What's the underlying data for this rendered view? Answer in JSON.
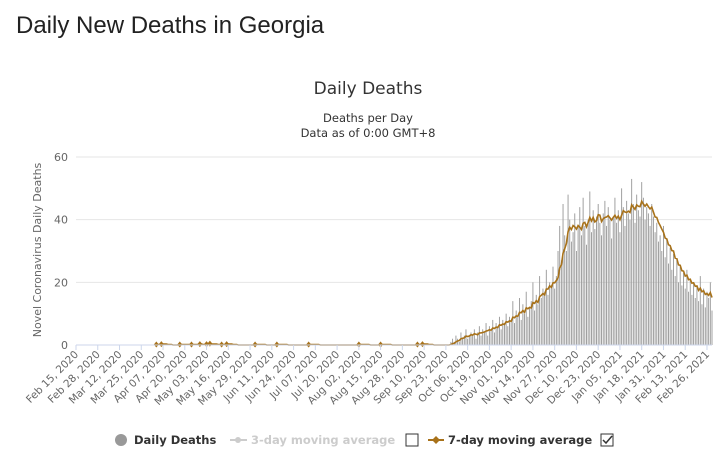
{
  "page": {
    "title": "Daily New Deaths in Georgia"
  },
  "chart_data": {
    "type": "bar",
    "title": "Daily Deaths",
    "subtitle_line1": "Deaths per Day",
    "subtitle_line2": "Data as of 0:00 GMT+8",
    "ylabel": "Novel Coronavirus Daily Deaths",
    "xlabel": "",
    "ylim": [
      0,
      60
    ],
    "y_ticks": [
      0,
      20,
      40,
      60
    ],
    "grid": true,
    "legend_position": "bottom",
    "x_start_date": "2020-02-15",
    "x_end_date": "2021-03-01",
    "x_tick_labels": [
      "Feb 15, 2020",
      "Feb 28, 2020",
      "Mar 12, 2020",
      "Mar 25, 2020",
      "Apr 07, 2020",
      "Apr 20, 2020",
      "May 03, 2020",
      "May 16, 2020",
      "May 29, 2020",
      "Jun 11, 2020",
      "Jun 24, 2020",
      "Jul 07, 2020",
      "Jul 20, 2020",
      "Aug 02, 2020",
      "Aug 15, 2020",
      "Aug 28, 2020",
      "Sep 10, 2020",
      "Sep 23, 2020",
      "Oct 06, 2020",
      "Oct 19, 2020",
      "Nov 01, 2020",
      "Nov 14, 2020",
      "Nov 27, 2020",
      "Dec 10, 2020",
      "Dec 23, 2020",
      "Jan 05, 2021",
      "Jan 18, 2021",
      "Jan 31, 2021",
      "Feb 13, 2021",
      "Feb 26, 2021"
    ],
    "daily_deaths_sparse": [
      [
        "2020-04-03",
        1
      ],
      [
        "2020-04-06",
        1
      ],
      [
        "2020-04-17",
        1
      ],
      [
        "2020-04-24",
        1
      ],
      [
        "2020-04-29",
        1
      ],
      [
        "2020-05-03",
        1
      ],
      [
        "2020-05-05",
        1
      ],
      [
        "2020-05-12",
        1
      ],
      [
        "2020-05-15",
        1
      ],
      [
        "2020-06-01",
        1
      ],
      [
        "2020-06-14",
        1
      ],
      [
        "2020-07-03",
        1
      ],
      [
        "2020-08-02",
        1
      ],
      [
        "2020-08-15",
        1
      ],
      [
        "2020-09-06",
        1
      ],
      [
        "2020-09-09",
        1
      ]
    ],
    "daily_deaths_from": "2020-09-26",
    "daily_deaths_dense": [
      1,
      2,
      1,
      3,
      2,
      1,
      4,
      2,
      3,
      5,
      2,
      3,
      4,
      3,
      5,
      2,
      4,
      6,
      3,
      5,
      4,
      7,
      3,
      6,
      5,
      8,
      4,
      7,
      6,
      9,
      5,
      8,
      7,
      10,
      6,
      9,
      8,
      14,
      7,
      11,
      9,
      15,
      8,
      13,
      10,
      17,
      9,
      12,
      14,
      20,
      11,
      16,
      13,
      22,
      15,
      18,
      17,
      24,
      16,
      20,
      19,
      25,
      18,
      22,
      30,
      38,
      27,
      45,
      35,
      30,
      48,
      40,
      33,
      36,
      42,
      30,
      38,
      44,
      35,
      47,
      38,
      32,
      40,
      49,
      36,
      43,
      37,
      41,
      45,
      39,
      35,
      42,
      46,
      38,
      44,
      40,
      34,
      41,
      47,
      39,
      43,
      36,
      50,
      44,
      38,
      46,
      42,
      40,
      53,
      45,
      39,
      48,
      43,
      41,
      52,
      47,
      40,
      44,
      42,
      38,
      45,
      41,
      36,
      39,
      33,
      35,
      30,
      38,
      28,
      34,
      26,
      31,
      24,
      29,
      22,
      27,
      20,
      25,
      19,
      23,
      18,
      24,
      17,
      21,
      16,
      20,
      15,
      19,
      14,
      22,
      13,
      18,
      12,
      17,
      15,
      20,
      11,
      16,
      14,
      19,
      10,
      15,
      13,
      18,
      12,
      14,
      11,
      16,
      10,
      13,
      12,
      14
    ]
  },
  "legend": {
    "item1": {
      "label": "Daily Deaths",
      "color": "#999999"
    },
    "item2": {
      "label": "3-day moving average",
      "color": "#cccccc",
      "enabled": false
    },
    "item3": {
      "label": "7-day moving average",
      "color": "#a8721a",
      "enabled": true
    }
  },
  "colors": {
    "bar": "#999999",
    "avg7": "#a8721a",
    "grid": "#e6e6e6",
    "axis_text": "#666666"
  }
}
